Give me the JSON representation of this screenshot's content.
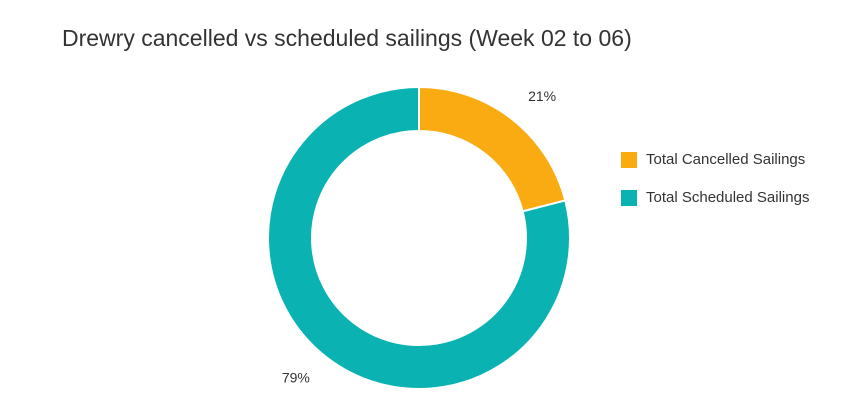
{
  "chart_data": {
    "type": "donut",
    "title": "Drewry cancelled vs scheduled sailings (Week 02 to 06)",
    "categories": [
      "Total Cancelled Sailings",
      "Total Scheduled Sailings"
    ],
    "values": [
      21,
      79
    ],
    "value_labels": [
      "21%",
      "79%"
    ],
    "colors": [
      "#fbab12",
      "#0ab3b1"
    ],
    "legend": "right"
  }
}
